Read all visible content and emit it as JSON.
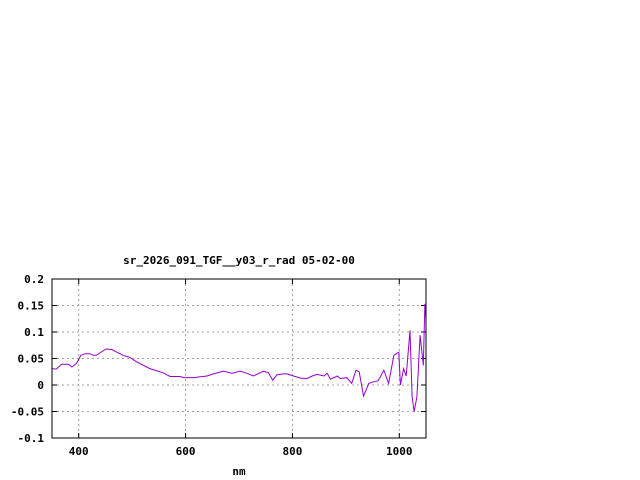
{
  "chart_data": {
    "type": "line",
    "title": "sr_2026_091_TGF__y03_r_rad 05-02-00",
    "xlabel": "nm",
    "ylabel": "",
    "xlim": [
      350,
      1050
    ],
    "ylim": [
      -0.1,
      0.2
    ],
    "xticks": [
      400,
      600,
      800,
      1000
    ],
    "xtick_labels": [
      "400",
      "600",
      "800",
      "1000"
    ],
    "yticks": [
      -0.1,
      -0.05,
      0,
      0.05,
      0.1,
      0.15,
      0.2
    ],
    "ytick_labels": [
      "-0.1",
      "-0.05",
      "0",
      "0.05",
      "0.1",
      "0.15",
      "0.2"
    ],
    "grid": true,
    "line_color": "#9400d3",
    "series": [
      {
        "x": [
          350,
          358,
          368,
          381,
          387,
          396,
          404,
          412,
          421,
          427,
          433,
          451,
          462,
          471,
          483,
          496,
          508,
          533,
          558,
          571,
          590,
          596,
          615,
          640,
          652,
          671,
          687,
          702,
          715,
          727,
          746,
          755,
          763,
          771,
          783,
          790,
          802,
          815,
          827,
          837,
          846,
          859,
          865,
          871,
          884,
          890,
          902,
          911,
          919,
          925,
          933,
          943,
          952,
          960,
          965,
          971,
          980,
          990,
          999,
          1002,
          1008,
          1013,
          1020,
          1024,
          1028,
          1033,
          1039,
          1045,
          1048,
          1050
        ],
        "y": [
          0.031,
          0.03,
          0.039,
          0.039,
          0.034,
          0.041,
          0.056,
          0.059,
          0.059,
          0.056,
          0.056,
          0.068,
          0.067,
          0.062,
          0.056,
          0.052,
          0.044,
          0.031,
          0.023,
          0.016,
          0.016,
          0.014,
          0.014,
          0.017,
          0.021,
          0.026,
          0.022,
          0.026,
          0.022,
          0.017,
          0.026,
          0.023,
          0.009,
          0.019,
          0.021,
          0.021,
          0.017,
          0.013,
          0.012,
          0.017,
          0.02,
          0.017,
          0.022,
          0.011,
          0.017,
          0.012,
          0.014,
          0.003,
          0.028,
          0.025,
          -0.021,
          0.003,
          0.006,
          0.008,
          0.016,
          0.028,
          0.003,
          0.056,
          0.062,
          0.0,
          0.031,
          0.017,
          0.103,
          -0.022,
          -0.05,
          -0.022,
          0.094,
          0.037,
          0.153,
          0.125
        ]
      }
    ]
  }
}
